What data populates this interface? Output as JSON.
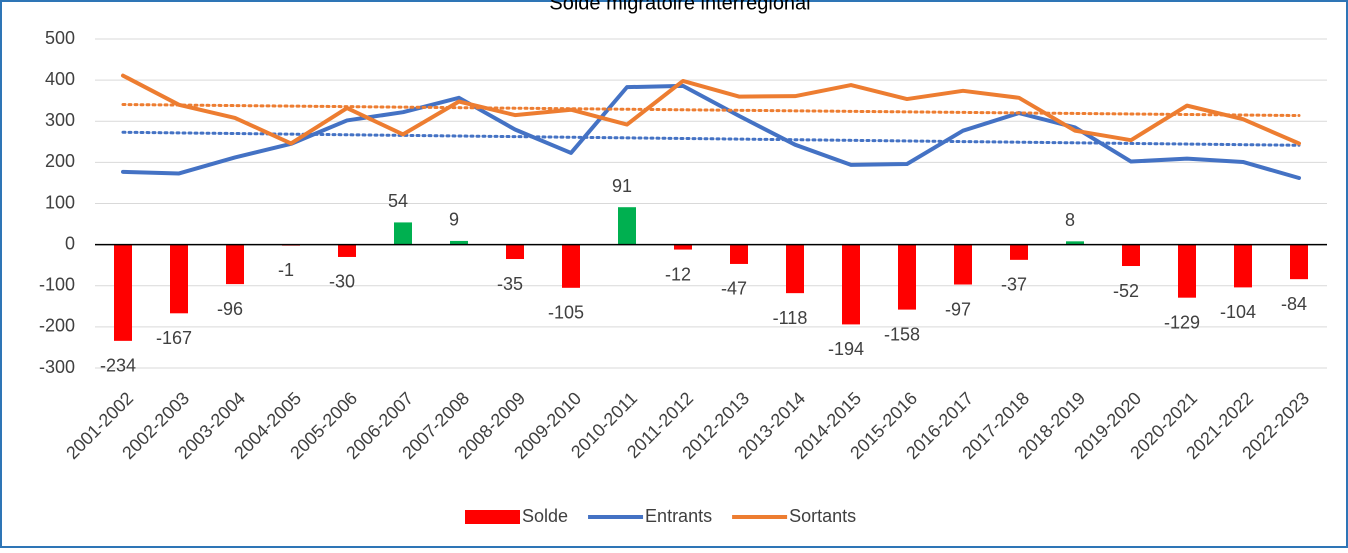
{
  "chart_data": {
    "type": "bar-line",
    "title": "Solde migratoire interrégional",
    "categories": [
      "2001-2002",
      "2002-2003",
      "2003-2004",
      "2004-2005",
      "2005-2006",
      "2006-2007",
      "2007-2008",
      "2008-2009",
      "2009-2010",
      "2010-2011",
      "2011-2012",
      "2012-2013",
      "2013-2014",
      "2014-2015",
      "2015-2016",
      "2016-2017",
      "2017-2018",
      "2018-2019",
      "2019-2020",
      "2020-2021",
      "2021-2022",
      "2022-2023"
    ],
    "series": [
      {
        "name": "Solde",
        "type": "bar",
        "color": "#ff0000",
        "positive_color": "#00b050",
        "data_labels": true,
        "values": [
          -234,
          -167,
          -96,
          -1,
          -30,
          54,
          9,
          -35,
          -105,
          91,
          -12,
          -47,
          -118,
          -194,
          -158,
          -97,
          -37,
          8,
          -52,
          -129,
          -104,
          -84
        ]
      },
      {
        "name": "Entrants",
        "type": "line",
        "color": "#4472c4",
        "trendline": true,
        "values": [
          177,
          173,
          212,
          245,
          302,
          322,
          357,
          280,
          223,
          383,
          386,
          313,
          243,
          194,
          196,
          277,
          320,
          285,
          202,
          209,
          201,
          162
        ]
      },
      {
        "name": "Sortants",
        "type": "line",
        "color": "#ed7d31",
        "trendline": true,
        "values": [
          411,
          340,
          308,
          246,
          332,
          268,
          348,
          315,
          328,
          292,
          398,
          360,
          361,
          388,
          354,
          374,
          357,
          277,
          254,
          338,
          305,
          246
        ]
      }
    ],
    "ylim": [
      -300,
      500
    ],
    "yticks": [
      -300,
      -200,
      -100,
      0,
      100,
      200,
      300,
      400,
      500
    ],
    "grid": true,
    "legend": "bottom"
  }
}
